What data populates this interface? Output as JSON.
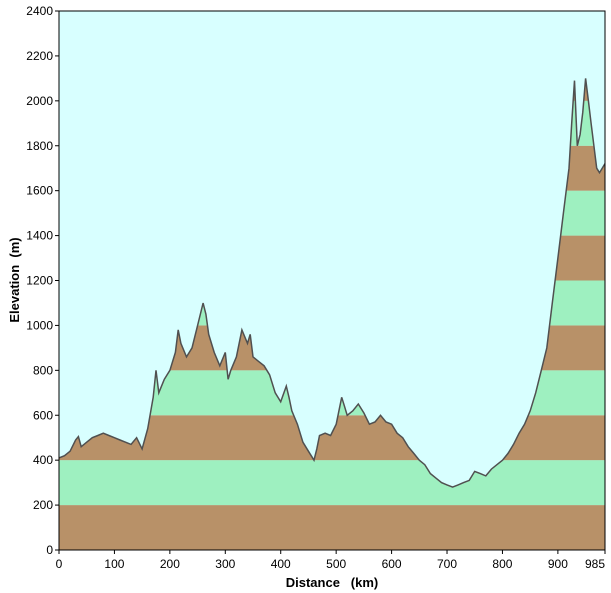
{
  "chart_data": {
    "type": "area",
    "xlabel": "Distance   (km)",
    "ylabel": "Elevation  (m)",
    "xlim": [
      0,
      985
    ],
    "ylim": [
      0,
      2400
    ],
    "x_ticks": [
      0,
      100,
      200,
      300,
      400,
      500,
      600,
      700,
      800,
      900,
      985
    ],
    "y_ticks": [
      0,
      200,
      400,
      600,
      800,
      1000,
      1200,
      1400,
      1600,
      1800,
      2000,
      2200,
      2400
    ],
    "band_interval": 200,
    "grid": false,
    "legend": "none",
    "colors": {
      "sky": "#d8ffff",
      "band_dark": "#b89168",
      "band_light": "#9ef0c0",
      "profile_line": "#505050",
      "axis": "#000000"
    },
    "series": [
      {
        "x": [
          0,
          10,
          20,
          30,
          35,
          40,
          50,
          60,
          70,
          80,
          90,
          100,
          110,
          120,
          130,
          140,
          150,
          160,
          170,
          175,
          180,
          190,
          200,
          210,
          215,
          220,
          230,
          240,
          250,
          260,
          265,
          270,
          280,
          290,
          300,
          305,
          310,
          320,
          330,
          340,
          345,
          350,
          360,
          370,
          380,
          390,
          400,
          410,
          415,
          420,
          430,
          440,
          450,
          460,
          465,
          470,
          480,
          490,
          500,
          510,
          515,
          520,
          530,
          540,
          550,
          560,
          570,
          580,
          590,
          600,
          610,
          620,
          630,
          640,
          650,
          660,
          670,
          680,
          690,
          700,
          710,
          720,
          730,
          740,
          750,
          760,
          770,
          780,
          790,
          800,
          810,
          820,
          830,
          840,
          850,
          860,
          870,
          880,
          890,
          900,
          910,
          920,
          925,
          930,
          935,
          940,
          945,
          950,
          955,
          960,
          965,
          970,
          975,
          980,
          985
        ],
        "y": [
          410,
          420,
          440,
          490,
          505,
          460,
          480,
          500,
          510,
          520,
          510,
          500,
          490,
          480,
          470,
          500,
          450,
          540,
          680,
          800,
          700,
          760,
          800,
          880,
          980,
          920,
          860,
          900,
          1000,
          1100,
          1050,
          960,
          880,
          820,
          880,
          760,
          800,
          860,
          980,
          920,
          960,
          860,
          840,
          820,
          780,
          700,
          660,
          730,
          680,
          620,
          560,
          480,
          440,
          400,
          450,
          510,
          520,
          510,
          560,
          680,
          640,
          600,
          620,
          650,
          610,
          560,
          570,
          600,
          570,
          560,
          520,
          500,
          460,
          430,
          400,
          380,
          340,
          320,
          300,
          290,
          280,
          290,
          300,
          310,
          350,
          340,
          330,
          360,
          380,
          400,
          430,
          470,
          520,
          560,
          620,
          700,
          800,
          900,
          1100,
          1300,
          1500,
          1700,
          1900,
          2090,
          1800,
          1850,
          1950,
          2100,
          2000,
          1900,
          1800,
          1700,
          1680,
          1700,
          1720
        ]
      }
    ]
  }
}
